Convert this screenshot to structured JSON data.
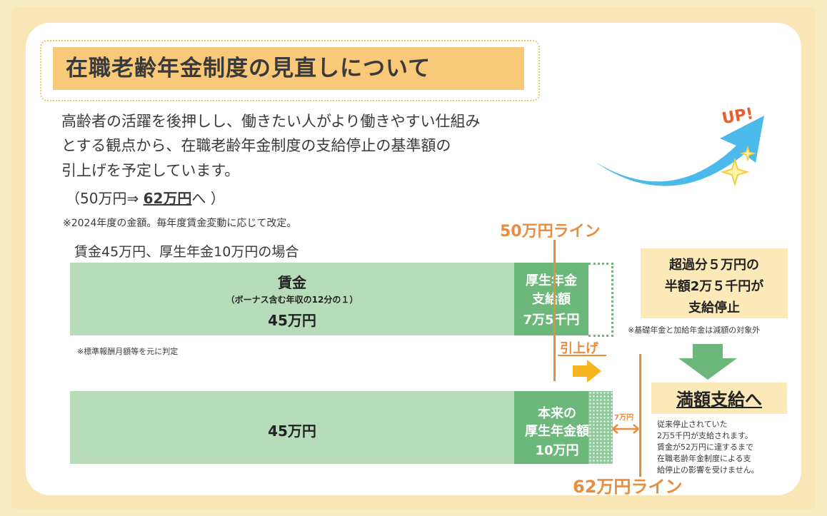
{
  "title": "在職老齢年金制度の見直しについて",
  "intro_lines": [
    "高齢者の活躍を後押しし、働きたい人がより働きやすい仕組み",
    "とする観点から、在職老齢年金制度の支給停止の基準額の",
    "引上げを予定しています。"
  ],
  "amount_line": {
    "prefix": "（50万円⇒ ",
    "highlight": "62万円",
    "suffix": "へ ）"
  },
  "note_2024": "※2024年度の金額。毎年度賃金変動に応じて改定。",
  "case_label": "賃金45万円、厚生年金10万円の場合",
  "upper_bar": {
    "wage_label": "賃金",
    "wage_sub": "（ボーナス含む年収の12分の１）",
    "wage_amount": "45万円",
    "pension_line1": "厚生年金",
    "pension_line2": "支給額",
    "pension_amount": "7万5千円"
  },
  "standard_note": "※標準報酬月額等を元に判定",
  "lower_bar": {
    "wage_amount": "45万円",
    "pension_line1": "本来の",
    "pension_line2": "厚生年金額",
    "pension_amount": "10万円"
  },
  "line_50": "50万円ライン",
  "line_62": "62万円ライン",
  "raise_label": "引上げ",
  "gap_label": "7万円",
  "excess_box": {
    "line1": "超過分５万円の",
    "line2": "半額2万５千円が",
    "line3": "支給停止"
  },
  "basic_note": "※基礎年金と加給年金は減額の対象外",
  "full_pay": "満額支給へ",
  "full_pay_desc": [
    "従来停止されていた",
    "2万5千円が支給されます。",
    "賃金が52万円に達するまで",
    "在職老齢年金制度による支",
    "給停止の影響を受けません。"
  ],
  "up_text": "UP!",
  "colors": {
    "green_light": "#b7dcba",
    "green_dark": "#6cb77a",
    "orange": "#e98c3e",
    "title_bg": "#f7c978",
    "arrow_blue": "#4bb9ea"
  }
}
